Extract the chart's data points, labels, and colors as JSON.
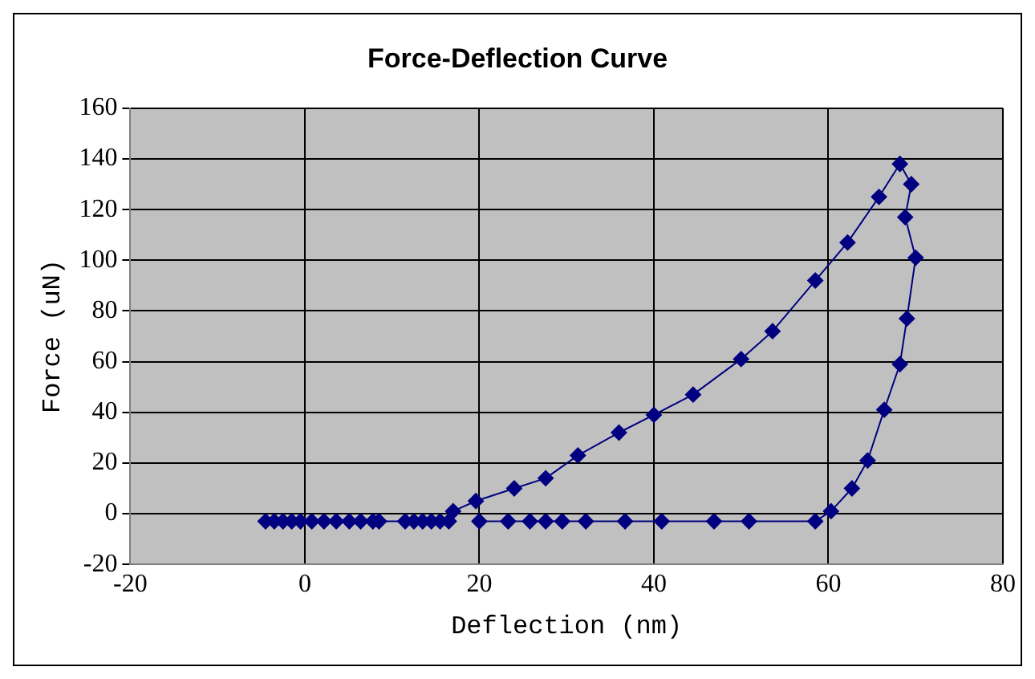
{
  "chart_data": {
    "type": "line",
    "title": "Force-Deflection Curve",
    "xlabel": "Deflection (nm)",
    "ylabel": "Force (uN)",
    "xlim": [
      -20,
      80
    ],
    "xticks": [
      -20,
      0,
      20,
      40,
      60,
      80
    ],
    "ylim": [
      -20,
      160
    ],
    "yticks": [
      -20,
      0,
      20,
      40,
      60,
      80,
      100,
      120,
      140,
      160
    ],
    "grid": true,
    "marker": "diamond",
    "line_style": "solid",
    "legend": false,
    "series": [
      {
        "color": "#000080",
        "x": [
          -4.5,
          -3.5,
          -2.5,
          -1.5,
          -0.5,
          0.8,
          2.2,
          3.6,
          5.1,
          6.4,
          7.8,
          8.5,
          11.5,
          12.5,
          13.5,
          14.5,
          15.5,
          16.5,
          17,
          19.6,
          24,
          27.6,
          31.3,
          36,
          40,
          44.5,
          50,
          53.6,
          58.5,
          62.2,
          65.8,
          68.2,
          69.5,
          68.8,
          70,
          69,
          68.2,
          66.4,
          64.5,
          62.7,
          60.3,
          58.5,
          50.9,
          46.9,
          40.9,
          36.7,
          32.2,
          29.5,
          27.6,
          25.8,
          23.3,
          20
        ],
        "values": [
          -3,
          -3,
          -3,
          -3,
          -3,
          -3,
          -3,
          -3,
          -3,
          -3,
          -3,
          -3,
          -3,
          -3,
          -3,
          -3,
          -3,
          -3,
          1,
          5,
          10,
          14,
          23,
          32,
          39,
          47,
          61,
          72,
          92,
          107,
          125,
          138,
          130,
          117,
          101,
          77,
          59,
          41,
          21,
          10,
          1,
          -3,
          -3,
          -3,
          -3,
          -3,
          -3,
          -3,
          -3,
          -3,
          -3,
          -3
        ]
      }
    ]
  }
}
